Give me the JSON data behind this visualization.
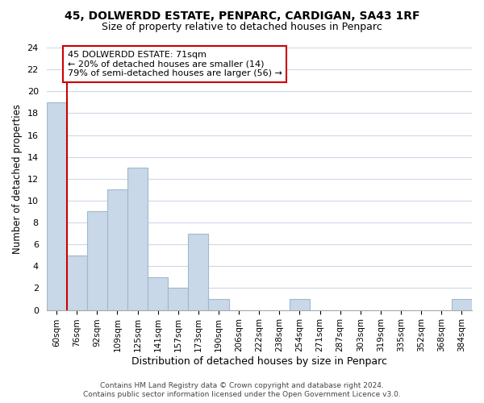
{
  "title": "45, DOLWERDD ESTATE, PENPARC, CARDIGAN, SA43 1RF",
  "subtitle": "Size of property relative to detached houses in Penparc",
  "xlabel": "Distribution of detached houses by size in Penparc",
  "ylabel": "Number of detached properties",
  "bin_labels": [
    "60sqm",
    "76sqm",
    "92sqm",
    "109sqm",
    "125sqm",
    "141sqm",
    "157sqm",
    "173sqm",
    "190sqm",
    "206sqm",
    "222sqm",
    "238sqm",
    "254sqm",
    "271sqm",
    "287sqm",
    "303sqm",
    "319sqm",
    "335sqm",
    "352sqm",
    "368sqm",
    "384sqm"
  ],
  "bar_values": [
    19,
    5,
    9,
    11,
    13,
    3,
    2,
    7,
    1,
    0,
    0,
    0,
    1,
    0,
    0,
    0,
    0,
    0,
    0,
    0,
    1
  ],
  "bar_color": "#c8d8e8",
  "bar_edge_color": "#a0b8cc",
  "highlight_line_color": "#cc0000",
  "annotation_title": "45 DOLWERDD ESTATE: 71sqm",
  "annotation_line1": "← 20% of detached houses are smaller (14)",
  "annotation_line2": "79% of semi-detached houses are larger (56) →",
  "annotation_box_color": "#ffffff",
  "annotation_box_edge": "#cc0000",
  "ylim": [
    0,
    24
  ],
  "yticks": [
    0,
    2,
    4,
    6,
    8,
    10,
    12,
    14,
    16,
    18,
    20,
    22,
    24
  ],
  "footer_line1": "Contains HM Land Registry data © Crown copyright and database right 2024.",
  "footer_line2": "Contains public sector information licensed under the Open Government Licence v3.0.",
  "background_color": "#ffffff",
  "grid_color": "#cdd8e8"
}
